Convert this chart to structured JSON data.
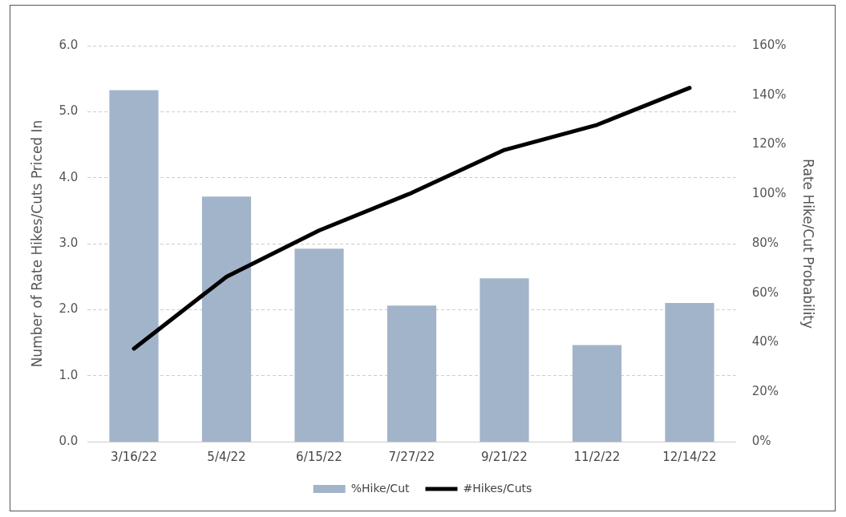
{
  "chart_data": {
    "type": "bar",
    "categories": [
      "3/16/22",
      "5/4/22",
      "6/15/22",
      "7/27/22",
      "9/21/22",
      "11/2/22",
      "12/14/22"
    ],
    "series": [
      {
        "name": "%Hike/Cut",
        "axis": "y2",
        "color": "#a2b4ca",
        "values": [
          142,
          99,
          78,
          55,
          66,
          39,
          56
        ]
      },
      {
        "name": "#Hikes/Cuts",
        "type": "line",
        "color": "#000000",
        "values": [
          1.41,
          2.5,
          3.2,
          3.77,
          4.42,
          4.8,
          5.36
        ]
      }
    ],
    "ylabel": "Number of Rate Hikes/Cuts Priced In",
    "y2label": "Rate Hike/Cut Probability",
    "ylim": [
      0,
      6
    ],
    "yticks": [
      {
        "value": 0,
        "label": "0.0"
      },
      {
        "value": 1,
        "label": "1.0"
      },
      {
        "value": 2,
        "label": "2.0"
      },
      {
        "value": 3,
        "label": "3.0"
      },
      {
        "value": 4,
        "label": "4.0"
      },
      {
        "value": 5,
        "label": "5.0"
      },
      {
        "value": 6,
        "label": "6.0"
      }
    ],
    "y2lim": [
      0,
      160
    ],
    "y2ticks": [
      {
        "value": 0,
        "label": "0%"
      },
      {
        "value": 20,
        "label": "20%"
      },
      {
        "value": 40,
        "label": "40%"
      },
      {
        "value": 60,
        "label": "60%"
      },
      {
        "value": 80,
        "label": "80%"
      },
      {
        "value": 100,
        "label": "100%"
      },
      {
        "value": 120,
        "label": "120%"
      },
      {
        "value": 140,
        "label": "140%"
      },
      {
        "value": 160,
        "label": "160%"
      }
    ],
    "grid": "y",
    "legend": "bottom",
    "marker": "none",
    "line_style": "solid"
  }
}
